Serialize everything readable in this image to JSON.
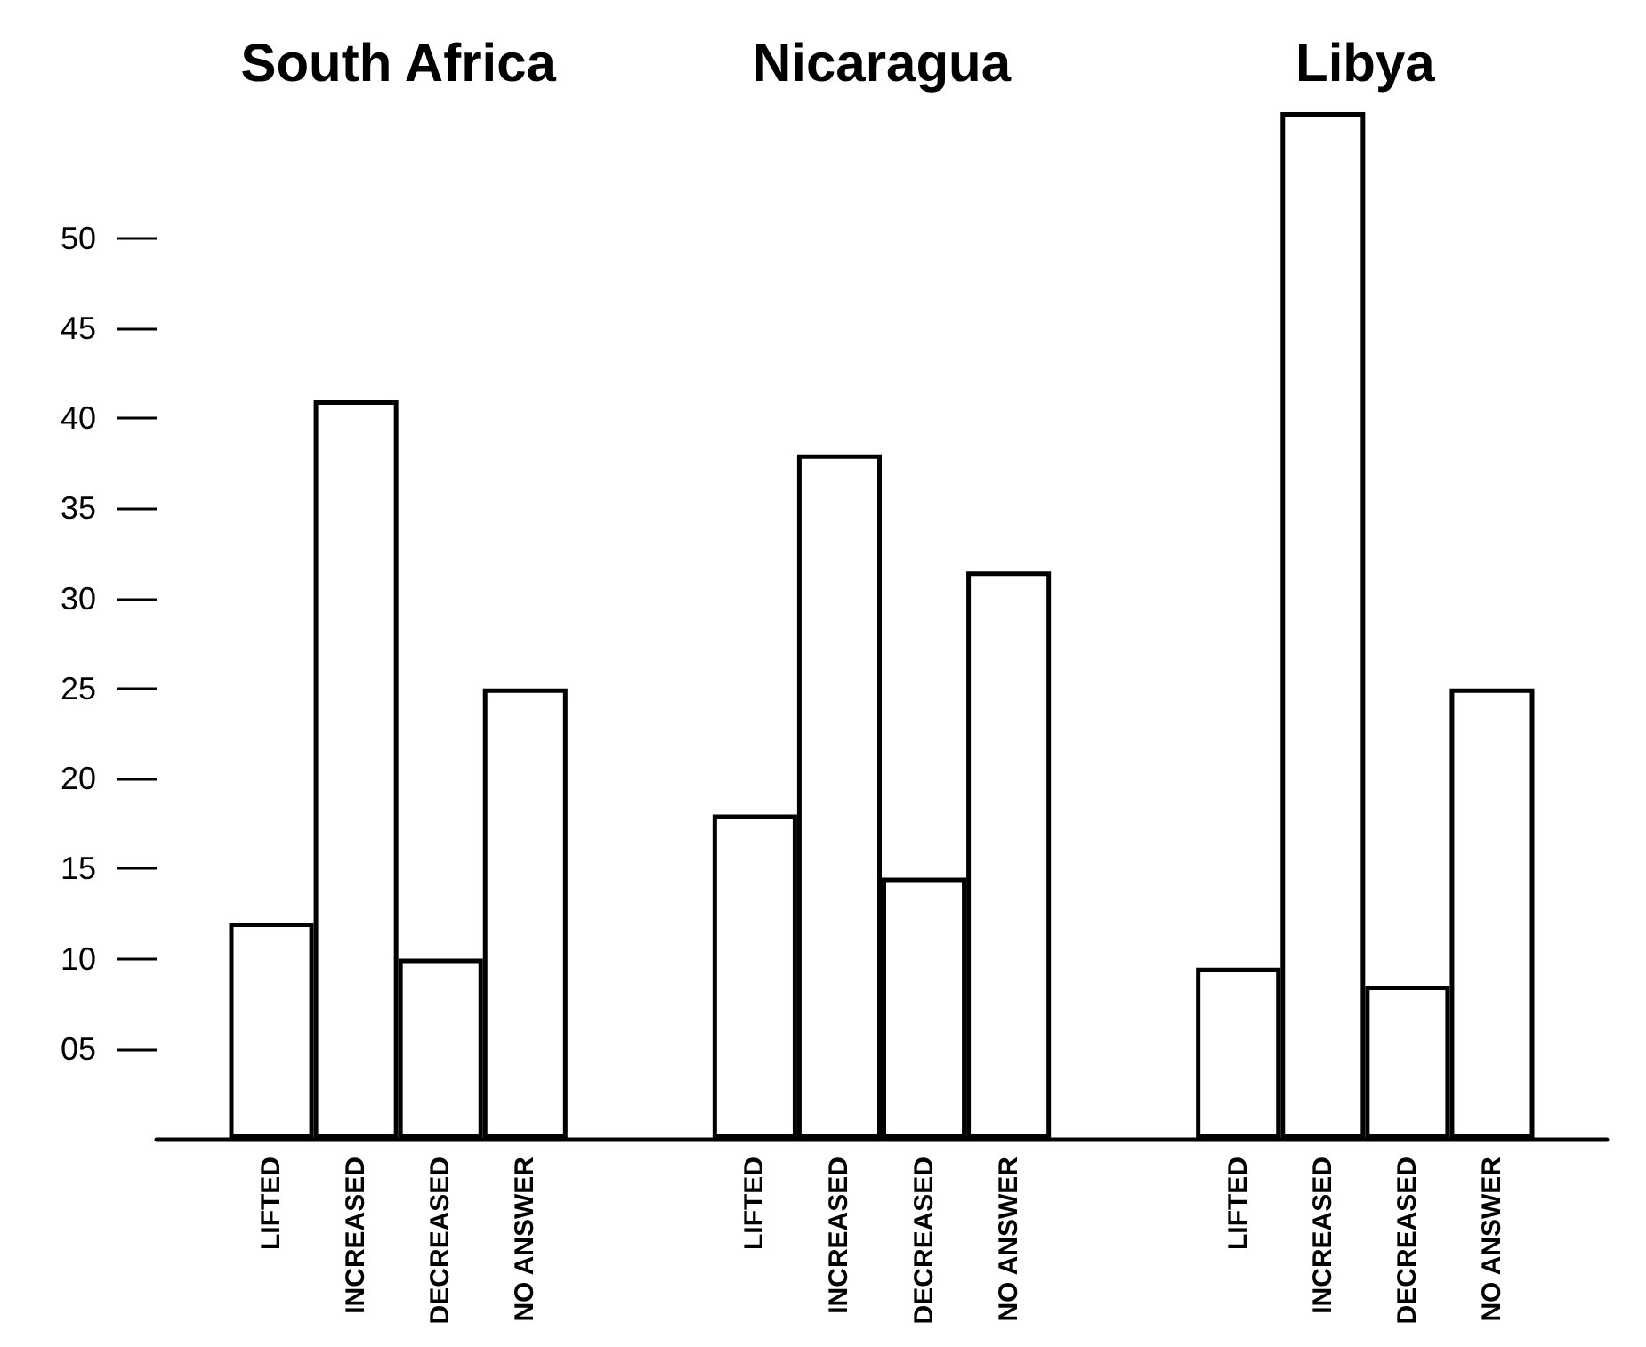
{
  "chart_data": {
    "type": "bar",
    "categories": [
      "South Africa",
      "Nicaragua",
      "Libya"
    ],
    "series": [
      {
        "name": "LIFTED",
        "color": "#ffffff",
        "values": [
          12,
          18,
          9.5
        ]
      },
      {
        "name": "INCREASED",
        "color": "#ffffff",
        "values": [
          41,
          38,
          57
        ]
      },
      {
        "name": "DECREASED",
        "color": "#ffffff",
        "values": [
          10,
          14.5,
          8.5
        ]
      },
      {
        "name": "NO ANSWER",
        "color": "#ffffff",
        "values": [
          25,
          31.5,
          25
        ]
      }
    ],
    "ylim": [
      0,
      57
    ],
    "yticks": [
      {
        "value": 5,
        "label": "05"
      },
      10,
      15,
      20,
      25,
      30,
      35,
      40,
      45,
      50
    ],
    "grid": false,
    "legend": false
  }
}
